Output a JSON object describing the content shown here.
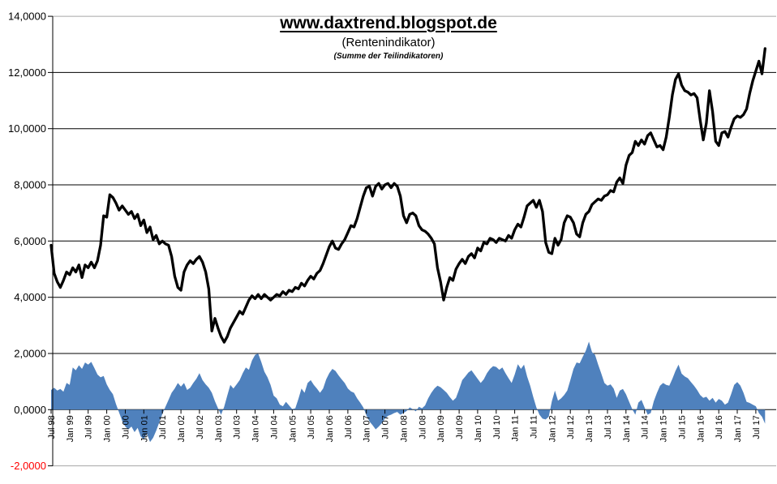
{
  "header": {
    "title": "www.daxtrend.blogspot.de",
    "subtitle": "(Rentenindikator)",
    "subsubtitle": "(Summe der Teilindikatoren)"
  },
  "chart_data": {
    "type": "combo",
    "x_unit": "month",
    "x_first": "Jul 98",
    "x_last_label": "Jul 17",
    "n_points": 232,
    "x_tick_interval_months": 6,
    "x_tick_labels": [
      "Jul 98",
      "Jan 99",
      "Jul 99",
      "Jan 00",
      "Jul 00",
      "Jan 01",
      "Jul 01",
      "Jan 02",
      "Jul 02",
      "Jan 03",
      "Jul 03",
      "Jan 04",
      "Jul 04",
      "Jan 05",
      "Jul 05",
      "Jan 06",
      "Jul 06",
      "Jan 07",
      "Jul 07",
      "Jan 08",
      "Jul 08",
      "Jan 09",
      "Jul 09",
      "Jan 10",
      "Jul 10",
      "Jan 11",
      "Jul 11",
      "Jan 12",
      "Jul 12",
      "Jan 13",
      "Jul 13",
      "Jan 14",
      "Jul 14",
      "Jan 15",
      "Jul 15",
      "Jan 16",
      "Jul 16",
      "Jan 17",
      "Jul 17"
    ],
    "y_axis": {
      "min": -2,
      "max": 14,
      "step": 2,
      "tick_labels": [
        "14,0000",
        "12,0000",
        "10,0000",
        "8,0000",
        "6,0000",
        "4,0000",
        "2,0000",
        "0,0000",
        "-2,0000"
      ],
      "label_color": "#000000",
      "negative_label_color": "#FF0000"
    },
    "grid": true,
    "legend": "none",
    "colors": {
      "grid": "#000000",
      "plot_border": "#A6A6A6",
      "axis": "#000000"
    },
    "series": [
      {
        "id": "indicator-line",
        "type": "line",
        "color": "#000000",
        "stroke_width": 3.3,
        "values": [
          5.85,
          4.85,
          4.55,
          4.35,
          4.6,
          4.9,
          4.8,
          5.05,
          4.9,
          5.15,
          4.7,
          5.15,
          5.05,
          5.25,
          5.05,
          5.3,
          5.85,
          6.9,
          6.85,
          7.65,
          7.55,
          7.35,
          7.1,
          7.25,
          7.1,
          6.95,
          7.05,
          6.8,
          6.95,
          6.55,
          6.75,
          6.3,
          6.5,
          6.05,
          6.2,
          5.9,
          6.0,
          5.9,
          5.85,
          5.45,
          4.75,
          4.35,
          4.25,
          4.9,
          5.15,
          5.3,
          5.2,
          5.35,
          5.45,
          5.25,
          4.9,
          4.3,
          2.8,
          3.25,
          2.9,
          2.6,
          2.4,
          2.6,
          2.9,
          3.1,
          3.3,
          3.5,
          3.4,
          3.65,
          3.9,
          4.05,
          3.95,
          4.1,
          3.95,
          4.1,
          4.0,
          3.9,
          4.0,
          4.1,
          4.05,
          4.2,
          4.1,
          4.25,
          4.2,
          4.35,
          4.3,
          4.5,
          4.4,
          4.6,
          4.75,
          4.65,
          4.85,
          4.95,
          5.2,
          5.5,
          5.8,
          6.0,
          5.75,
          5.7,
          5.9,
          6.05,
          6.3,
          6.55,
          6.5,
          6.8,
          7.2,
          7.6,
          7.9,
          7.95,
          7.6,
          7.95,
          8.05,
          7.85,
          8.0,
          8.05,
          7.9,
          8.05,
          7.95,
          7.6,
          6.9,
          6.65,
          6.95,
          7.0,
          6.9,
          6.55,
          6.4,
          6.35,
          6.25,
          6.1,
          5.9,
          5.05,
          4.55,
          3.9,
          4.35,
          4.7,
          4.6,
          5.0,
          5.2,
          5.35,
          5.2,
          5.45,
          5.55,
          5.4,
          5.75,
          5.65,
          5.95,
          5.9,
          6.1,
          6.05,
          5.95,
          6.1,
          6.05,
          6.0,
          6.2,
          6.1,
          6.4,
          6.6,
          6.5,
          6.85,
          7.25,
          7.35,
          7.45,
          7.2,
          7.45,
          7.05,
          5.95,
          5.6,
          5.55,
          6.1,
          5.85,
          6.05,
          6.65,
          6.9,
          6.85,
          6.65,
          6.25,
          6.15,
          6.65,
          6.95,
          7.05,
          7.3,
          7.4,
          7.5,
          7.45,
          7.6,
          7.65,
          7.8,
          7.75,
          8.1,
          8.25,
          8.05,
          8.7,
          9.05,
          9.15,
          9.55,
          9.4,
          9.6,
          9.45,
          9.75,
          9.85,
          9.6,
          9.35,
          9.4,
          9.25,
          9.7,
          10.4,
          11.2,
          11.75,
          11.95,
          11.55,
          11.35,
          11.3,
          11.2,
          11.25,
          11.1,
          10.3,
          9.6,
          10.2,
          11.35,
          10.6,
          9.55,
          9.4,
          9.85,
          9.9,
          9.7,
          10.05,
          10.35,
          10.45,
          10.4,
          10.5,
          10.7,
          11.25,
          11.7,
          12.05,
          12.4,
          11.95,
          12.85
        ]
      },
      {
        "id": "teilindikator-area",
        "type": "area",
        "color": "#4F81BD",
        "baseline": 0,
        "values": [
          0.7,
          0.78,
          0.68,
          0.74,
          0.64,
          0.95,
          0.88,
          1.5,
          1.4,
          1.58,
          1.45,
          1.68,
          1.6,
          1.7,
          1.48,
          1.25,
          1.15,
          1.2,
          0.9,
          0.7,
          0.55,
          0.2,
          -0.1,
          -0.4,
          -0.6,
          -0.7,
          -0.6,
          -0.8,
          -0.65,
          -0.95,
          -1.05,
          -0.85,
          -1.15,
          -1.0,
          -0.75,
          -0.45,
          -0.15,
          0.1,
          0.35,
          0.6,
          0.75,
          0.95,
          0.82,
          0.95,
          0.7,
          0.78,
          0.95,
          1.1,
          1.3,
          1.05,
          0.9,
          0.78,
          0.6,
          0.3,
          0.05,
          -0.18,
          0.1,
          0.5,
          0.88,
          0.75,
          0.9,
          1.05,
          1.3,
          1.5,
          1.42,
          1.75,
          1.95,
          2.0,
          1.7,
          1.35,
          1.15,
          0.88,
          0.5,
          0.4,
          0.18,
          0.12,
          0.28,
          0.15,
          0.02,
          0.05,
          0.38,
          0.75,
          0.6,
          0.95,
          1.05,
          0.88,
          0.75,
          0.6,
          0.75,
          1.08,
          1.3,
          1.45,
          1.38,
          1.22,
          1.08,
          0.95,
          0.75,
          0.65,
          0.6,
          0.4,
          0.25,
          0.08,
          -0.2,
          -0.42,
          -0.55,
          -0.7,
          -0.6,
          -0.48,
          -0.32,
          -0.22,
          -0.18,
          -0.12,
          -0.08,
          -0.18,
          -0.12,
          -0.05,
          0.08,
          0.02,
          -0.06,
          0.1,
          0.05,
          0.15,
          0.4,
          0.6,
          0.75,
          0.85,
          0.8,
          0.7,
          0.6,
          0.45,
          0.32,
          0.42,
          0.72,
          1.05,
          1.18,
          1.32,
          1.4,
          1.25,
          1.1,
          0.95,
          1.08,
          1.3,
          1.45,
          1.55,
          1.52,
          1.42,
          1.5,
          1.3,
          1.12,
          0.95,
          1.25,
          1.62,
          1.45,
          1.6,
          1.18,
          0.85,
          0.45,
          0.08,
          -0.18,
          -0.32,
          -0.35,
          -0.25,
          0.3,
          0.68,
          0.32,
          0.4,
          0.52,
          0.68,
          1.05,
          1.45,
          1.68,
          1.65,
          1.88,
          2.1,
          2.42,
          2.05,
          1.95,
          1.6,
          1.28,
          0.95,
          0.85,
          0.9,
          0.75,
          0.42,
          0.68,
          0.74,
          0.55,
          0.28,
          0.02,
          -0.18,
          0.25,
          0.35,
          0.08,
          -0.18,
          -0.12,
          0.3,
          0.6,
          0.85,
          0.95,
          0.88,
          0.85,
          1.1,
          1.38,
          1.6,
          1.28,
          1.18,
          1.12,
          0.98,
          0.85,
          0.7,
          0.52,
          0.42,
          0.46,
          0.32,
          0.42,
          0.25,
          0.38,
          0.32,
          0.18,
          0.25,
          0.55,
          0.88,
          0.98,
          0.85,
          0.6,
          0.28,
          0.24,
          0.18,
          0.12,
          -0.12,
          -0.25,
          -0.5
        ]
      }
    ]
  }
}
